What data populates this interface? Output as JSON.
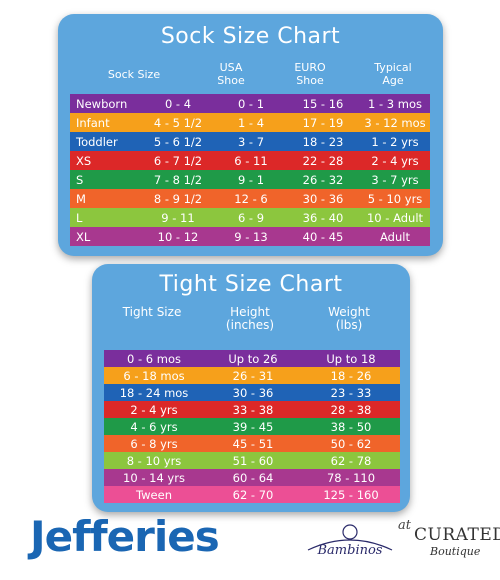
{
  "sock_chart": {
    "title": "Sock Size Chart",
    "headers": [
      "Sock Size",
      "USA Shoe",
      "EURO Shoe",
      "Typical Age"
    ],
    "rows": [
      {
        "label": "Newborn",
        "size": "0 - 4",
        "usa": "0 - 1",
        "euro": "15 - 16",
        "age": "1 - 3 mos",
        "color": "#7a2e9c"
      },
      {
        "label": "Infant",
        "size": "4 - 5 1/2",
        "usa": "1 - 4",
        "euro": "17 - 19",
        "age": "3 - 12 mos",
        "color": "#f6a01b"
      },
      {
        "label": "Toddler",
        "size": "5 - 6 1/2",
        "usa": "3 - 7",
        "euro": "18 - 23",
        "age": "1 - 2 yrs",
        "color": "#1f63b6"
      },
      {
        "label": "XS",
        "size": "6 - 7 1/2",
        "usa": "6 - 11",
        "euro": "22 - 28",
        "age": "2 - 4 yrs",
        "color": "#dc2828"
      },
      {
        "label": "S",
        "size": "7 - 8 1/2",
        "usa": "9 - 1",
        "euro": "26 - 32",
        "age": "3 - 7 yrs",
        "color": "#1f9a48"
      },
      {
        "label": "M",
        "size": "8 - 9 1/2",
        "usa": "12 - 6",
        "euro": "30 - 36",
        "age": "5 - 10 yrs",
        "color": "#f0642a"
      },
      {
        "label": "L",
        "size": "9 - 11",
        "usa": "6 - 9",
        "euro": "36 - 40",
        "age": "10 - Adult",
        "color": "#8cc63e"
      },
      {
        "label": "XL",
        "size": "10 - 12",
        "usa": "9 - 13",
        "euro": "40 - 45",
        "age": "Adult",
        "color": "#a8388f"
      }
    ]
  },
  "tight_chart": {
    "title": "Tight Size Chart",
    "headers": [
      "Tight Size",
      "Height (inches)",
      "Weight (lbs)"
    ],
    "rows": [
      {
        "size": "0 - 6 mos",
        "height": "Up to 26",
        "weight": "Up to 18",
        "color": "#7a2e9c"
      },
      {
        "size": "6 - 18 mos",
        "height": "26 - 31",
        "weight": "18 - 26",
        "color": "#f6a01b"
      },
      {
        "size": "18 - 24 mos",
        "height": "30 - 36",
        "weight": "23 - 33",
        "color": "#1f63b6"
      },
      {
        "size": "2 - 4 yrs",
        "height": "33 - 38",
        "weight": "28 - 38",
        "color": "#dc2828"
      },
      {
        "size": "4 - 6 yrs",
        "height": "39 - 45",
        "weight": "38 - 50",
        "color": "#1f9a48"
      },
      {
        "size": "6 - 8 yrs",
        "height": "45 - 51",
        "weight": "50 - 62",
        "color": "#f0642a"
      },
      {
        "size": "8 - 10 yrs",
        "height": "51 - 60",
        "weight": "62 - 78",
        "color": "#8cc63e"
      },
      {
        "size": "10 - 14 yrs",
        "height": "60 - 64",
        "weight": "78 - 110",
        "color": "#a8388f"
      },
      {
        "size": "Tween",
        "height": "62 - 70",
        "weight": "125 - 160",
        "color": "#ec4f95"
      }
    ]
  },
  "brands": {
    "jefferies": "Jefferies",
    "bambinos": "Bambinos",
    "at": "at",
    "curated": "CURATED",
    "boutique": "Boutique"
  }
}
